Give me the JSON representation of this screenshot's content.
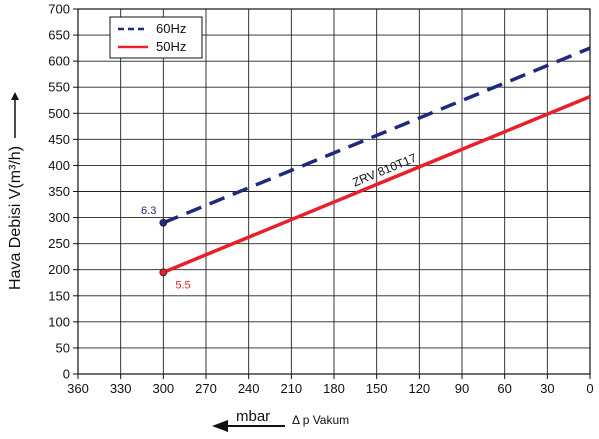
{
  "chart_data": {
    "type": "line",
    "xlabel": "mbar",
    "xlabel_sub": "Δ p Vakum",
    "ylabel": "Hava Debisi V(m³/h)",
    "xlim": [
      360,
      0
    ],
    "ylim": [
      0,
      700
    ],
    "x_ticks": [
      360,
      330,
      300,
      270,
      240,
      210,
      180,
      150,
      120,
      90,
      60,
      30,
      0
    ],
    "y_ticks": [
      0,
      50,
      100,
      150,
      200,
      250,
      300,
      350,
      400,
      450,
      500,
      550,
      600,
      650,
      700
    ],
    "grid": true,
    "legend_position": "top-left",
    "series": [
      {
        "name": "60Hz",
        "color": "#1f2a7a",
        "line_style": "dashed",
        "x": [
          300,
          0
        ],
        "y": [
          290,
          625
        ],
        "start_label": "6.3"
      },
      {
        "name": "50Hz",
        "color": "#e8202a",
        "line_style": "solid",
        "x": [
          300,
          0
        ],
        "y": [
          195,
          532
        ],
        "start_label": "5.5"
      }
    ],
    "annotations": [
      {
        "text": "ZRV 810T17",
        "x": 150,
        "y": 340
      }
    ]
  }
}
